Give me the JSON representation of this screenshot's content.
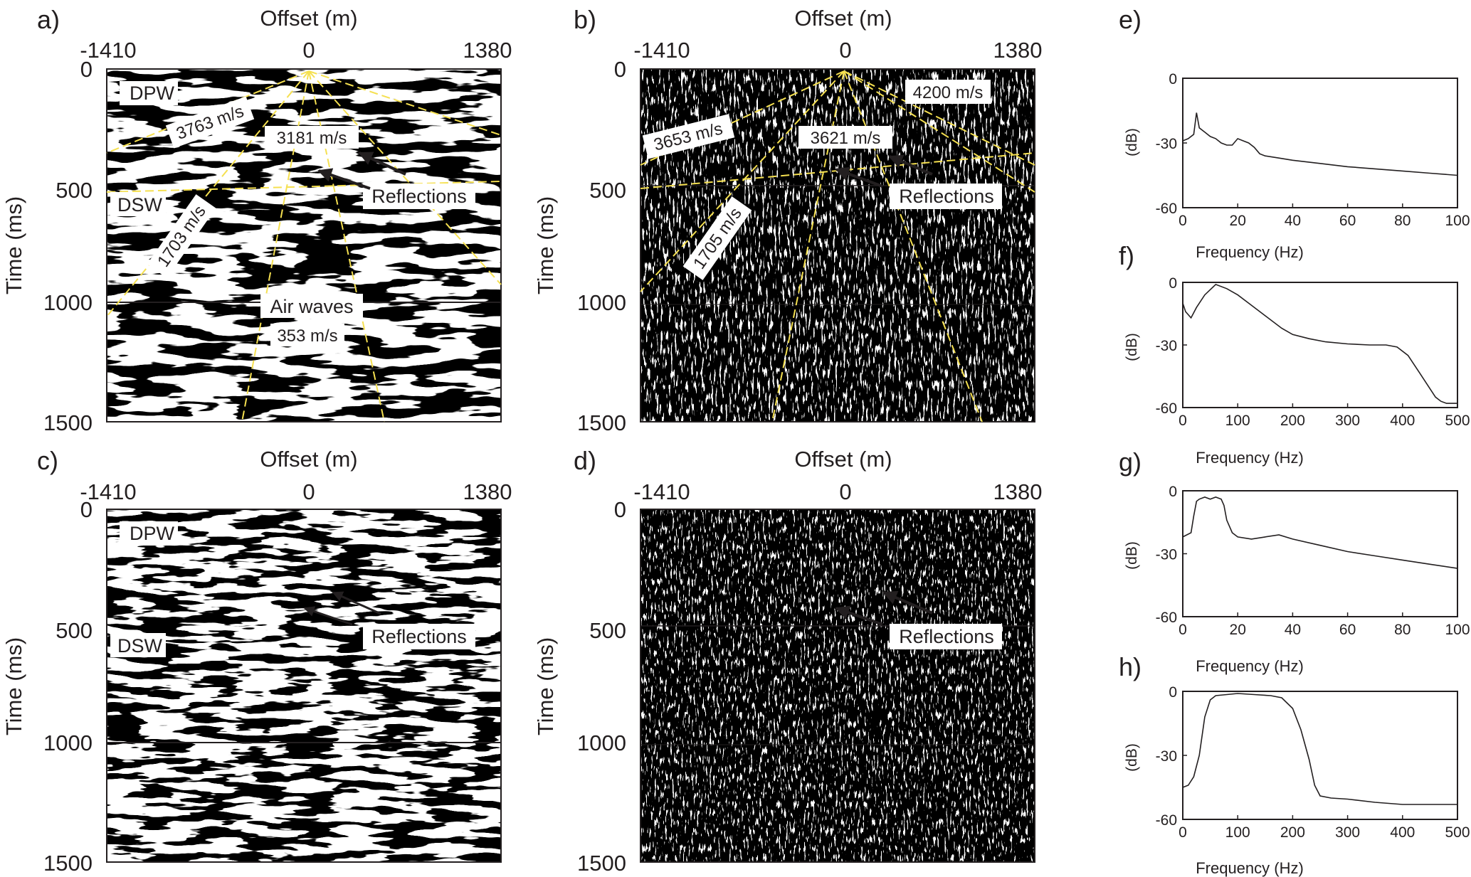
{
  "gathers": [
    {
      "id": "a",
      "panel_label": "a)",
      "style": "agc",
      "xlabel": "Offset (m)",
      "ylabel": "Time (ms)",
      "x_ticks": [
        "-1410",
        "0",
        "1380"
      ],
      "y_ticks": [
        "0",
        "500",
        "1000",
        "1500"
      ],
      "annotations": [
        "DPW",
        "3763 m/s",
        "3181 m/s",
        "DSW",
        "1703 m/s",
        "Reflections",
        "Air waves",
        "353 m/s"
      ]
    },
    {
      "id": "b",
      "panel_label": "b)",
      "style": "sparse",
      "xlabel": "Offset (m)",
      "ylabel": "Time (ms)",
      "x_ticks": [
        "-1410",
        "0",
        "1380"
      ],
      "y_ticks": [
        "0",
        "500",
        "1000",
        "1500"
      ],
      "annotations": [
        "4200 m/s",
        "3653 m/s",
        "3621 m/s",
        "Reflections",
        "1705 m/s"
      ]
    },
    {
      "id": "c",
      "panel_label": "c)",
      "style": "agc",
      "xlabel": "Offset (m)",
      "ylabel": "Time (ms)",
      "x_ticks": [
        "-1410",
        "0",
        "1380"
      ],
      "y_ticks": [
        "0",
        "500",
        "1000",
        "1500"
      ],
      "annotations": [
        "DPW",
        "DSW",
        "Reflections"
      ]
    },
    {
      "id": "d",
      "panel_label": "d)",
      "style": "sparse",
      "xlabel": "Offset (m)",
      "ylabel": "Time (ms)",
      "x_ticks": [
        "-1410",
        "0",
        "1380"
      ],
      "y_ticks": [
        "0",
        "500",
        "1000",
        "1500"
      ],
      "annotations": [
        "Reflections"
      ]
    }
  ],
  "chart_data": [
    {
      "id": "e",
      "panel_label": "e)",
      "type": "line",
      "xlabel": "Frequency (Hz)",
      "ylabel": "(dB)",
      "xlim": [
        0,
        100
      ],
      "ylim": [
        -60,
        0
      ],
      "x_ticks": [
        "0",
        "20",
        "40",
        "60",
        "80",
        "100"
      ],
      "y_ticks": [
        "0",
        "-30",
        "-60"
      ],
      "series": [
        {
          "x": [
            0,
            2,
            4,
            5,
            6,
            8,
            10,
            12,
            14,
            16,
            18,
            20,
            22,
            24,
            26,
            28,
            30,
            35,
            40,
            50,
            60,
            70,
            80,
            90,
            100
          ],
          "y": [
            -29,
            -28,
            -26,
            -16,
            -23,
            -25,
            -27,
            -28,
            -30,
            -31,
            -31,
            -28,
            -29,
            -30,
            -32,
            -35,
            -36,
            -37,
            -38,
            -39.5,
            -41,
            -42,
            -43,
            -44,
            -45
          ]
        }
      ]
    },
    {
      "id": "f",
      "panel_label": "f)",
      "type": "line",
      "xlabel": "Frequency (Hz)",
      "ylabel": "(dB)",
      "xlim": [
        0,
        500
      ],
      "ylim": [
        -60,
        0
      ],
      "x_ticks": [
        "0",
        "100",
        "200",
        "300",
        "400",
        "500"
      ],
      "y_ticks": [
        "0",
        "-30",
        "-60"
      ],
      "series": [
        {
          "x": [
            0,
            5,
            15,
            25,
            40,
            60,
            80,
            100,
            120,
            150,
            180,
            200,
            230,
            260,
            300,
            340,
            370,
            390,
            410,
            430,
            450,
            460,
            470,
            480,
            500
          ],
          "y": [
            -10,
            -14,
            -17,
            -12,
            -6,
            -1,
            -3,
            -6,
            -10,
            -16,
            -22,
            -25,
            -27,
            -28.5,
            -29.5,
            -30,
            -30,
            -31,
            -35,
            -43,
            -51,
            -55,
            -57,
            -58,
            -58
          ]
        }
      ]
    },
    {
      "id": "g",
      "panel_label": "g)",
      "type": "line",
      "xlabel": "Frequency (Hz)",
      "ylabel": "(dB)",
      "xlim": [
        0,
        100
      ],
      "ylim": [
        -60,
        0
      ],
      "x_ticks": [
        "0",
        "20",
        "40",
        "60",
        "80",
        "100"
      ],
      "y_ticks": [
        "0",
        "-30",
        "-60"
      ],
      "series": [
        {
          "x": [
            0,
            3,
            4,
            5,
            6,
            8,
            10,
            12,
            14,
            15,
            16,
            18,
            20,
            25,
            30,
            35,
            40,
            50,
            60,
            70,
            80,
            90,
            100
          ],
          "y": [
            -22,
            -20,
            -12,
            -5,
            -4,
            -3,
            -4,
            -3,
            -4,
            -7,
            -14,
            -20,
            -22,
            -23,
            -22,
            -21,
            -23,
            -26,
            -29,
            -31,
            -33,
            -35,
            -37
          ]
        }
      ]
    },
    {
      "id": "h",
      "panel_label": "h)",
      "type": "line",
      "xlabel": "Frequency (Hz)",
      "ylabel": "(dB)",
      "xlim": [
        0,
        500
      ],
      "ylim": [
        -60,
        0
      ],
      "x_ticks": [
        "0",
        "100",
        "200",
        "300",
        "400",
        "500"
      ],
      "y_ticks": [
        "0",
        "-30",
        "-60"
      ],
      "series": [
        {
          "x": [
            0,
            10,
            20,
            30,
            40,
            50,
            60,
            80,
            100,
            130,
            160,
            180,
            200,
            215,
            230,
            240,
            250,
            270,
            300,
            350,
            400,
            450,
            500
          ],
          "y": [
            -45,
            -44,
            -40,
            -30,
            -12,
            -4,
            -2,
            -1.5,
            -1,
            -1.5,
            -2,
            -3,
            -8,
            -18,
            -32,
            -44,
            -49,
            -50,
            -50.5,
            -52,
            -53,
            -53,
            -53
          ]
        }
      ]
    }
  ]
}
